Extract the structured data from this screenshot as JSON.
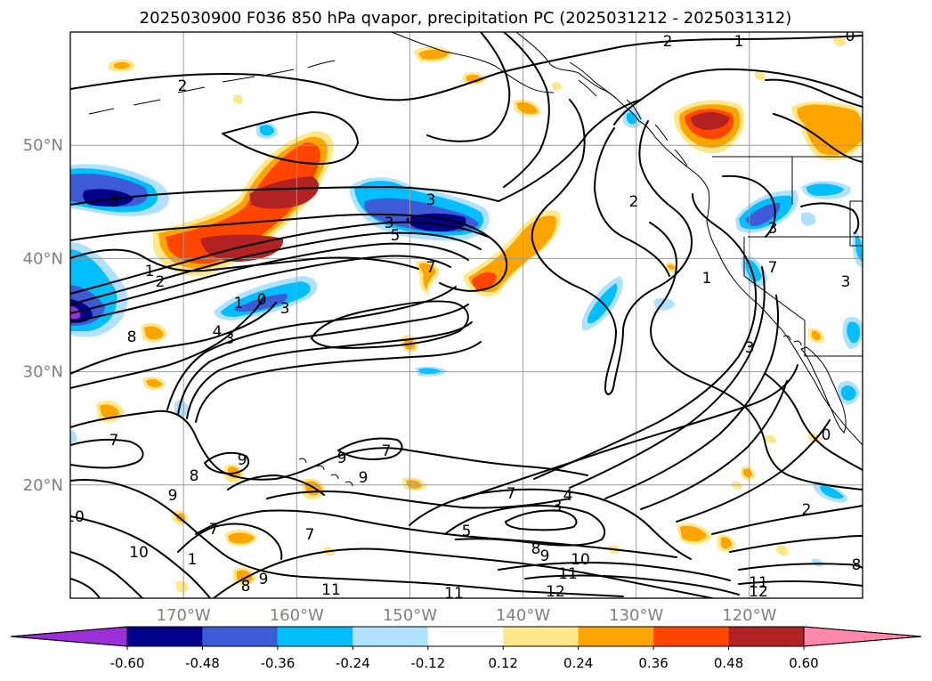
{
  "title": "2025030900 F036 850 hPa qvapor, precipitation PC (2025031212 - 2025031312)",
  "map": {
    "lat_labels": [
      {
        "value": 50,
        "label": "50°N"
      },
      {
        "value": 40,
        "label": "40°N"
      },
      {
        "value": 30,
        "label": "30°N"
      },
      {
        "value": 20,
        "label": "20°N"
      }
    ],
    "lon_labels": [
      {
        "value": -170,
        "label": "170°W"
      },
      {
        "value": -160,
        "label": "160°W"
      },
      {
        "value": -150,
        "label": "150°W"
      },
      {
        "value": -140,
        "label": "140°W"
      },
      {
        "value": -130,
        "label": "130°W"
      },
      {
        "value": -120,
        "label": "120°W"
      }
    ],
    "extent": {
      "lon_min": -180,
      "lon_max": -110,
      "lat_min": 10,
      "lat_max": 60
    },
    "contour_labels": [
      "2",
      "1",
      "0",
      "2",
      "2",
      "3",
      "5",
      "2",
      "3",
      "1",
      "2",
      "1",
      "0",
      "3",
      "8",
      "4",
      "3",
      "7",
      "3",
      "7",
      "3",
      "1",
      "3",
      "0",
      "7",
      "8",
      "9",
      "9",
      "9",
      "7",
      "9",
      "10",
      "10",
      "7",
      "7",
      "8",
      "9",
      "5",
      "7",
      "4",
      "3",
      "8",
      "9",
      "10",
      "11",
      "11",
      "11",
      "12",
      "2",
      "11",
      "12",
      "8",
      "1"
    ],
    "shading_colors": {
      "purple": "#9b30d9",
      "navy": "#00008b",
      "royal_blue": "#3d5bd6",
      "deep_sky_blue": "#00bfff",
      "light_blue": "#b0e2ff",
      "white": "#ffffff",
      "light_yellow": "#ffe88a",
      "orange": "#ffa500",
      "orange_red": "#ff4500",
      "firebrick": "#b22222",
      "pink": "#ff88aa"
    }
  },
  "colorbar": {
    "tick_labels": [
      "-0.60",
      "-0.48",
      "-0.36",
      "-0.24",
      "-0.12",
      "0.12",
      "0.24",
      "0.36",
      "0.48",
      "0.60"
    ],
    "bins": [
      {
        "color": "#9b30d9"
      },
      {
        "color": "#00008b"
      },
      {
        "color": "#3d5bd6"
      },
      {
        "color": "#00bfff"
      },
      {
        "color": "#b0e2ff"
      },
      {
        "color": "#ffffff"
      },
      {
        "color": "#ffe88a"
      },
      {
        "color": "#ffa500"
      },
      {
        "color": "#ff4500"
      },
      {
        "color": "#b22222"
      },
      {
        "color": "#ff88aa"
      }
    ]
  }
}
